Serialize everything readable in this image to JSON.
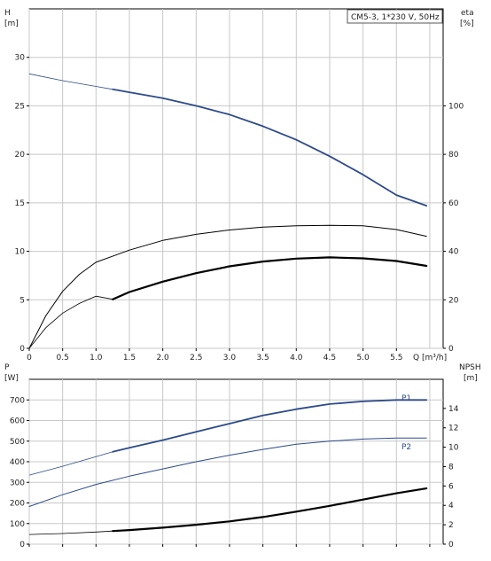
{
  "chart_data": [
    {
      "type": "line",
      "legend": "CM5-3, 1*230 V, 50Hz",
      "xlabel": "Q [m³/h]",
      "ylabel_left": [
        "H",
        "[m]"
      ],
      "ylabel_right": [
        "eta",
        "[%]"
      ],
      "xlim": [
        0,
        6.2
      ],
      "ylim_left": [
        0,
        35
      ],
      "ylim_right": [
        0,
        140
      ],
      "xticks": [
        "0",
        "0.5",
        "1.0",
        "1.5",
        "2.0",
        "2.5",
        "3.0",
        "3.5",
        "4.0",
        "4.5",
        "5.0",
        "5.5"
      ],
      "yticks_left": [
        "0",
        "5",
        "10",
        "15",
        "20",
        "25",
        "30"
      ],
      "yticks_right": [
        "0",
        "20",
        "40",
        "60",
        "80",
        "100"
      ],
      "grid": true,
      "series": [
        {
          "axis": "left",
          "color": "#2c4a8a",
          "width": 1.8,
          "thin_until": 1.25,
          "points": [
            [
              0,
              28.3
            ],
            [
              0.5,
              27.6
            ],
            [
              1.0,
              27.0
            ],
            [
              1.25,
              26.7
            ],
            [
              1.5,
              26.4
            ],
            [
              2.0,
              25.8
            ],
            [
              2.5,
              25.0
            ],
            [
              3.0,
              24.1
            ],
            [
              3.5,
              22.9
            ],
            [
              4.0,
              21.5
            ],
            [
              4.5,
              19.8
            ],
            [
              5.0,
              17.9
            ],
            [
              5.5,
              15.8
            ],
            [
              5.95,
              14.7
            ]
          ]
        },
        {
          "axis": "right",
          "color": "#000000",
          "width": 1,
          "points": [
            [
              0,
              0
            ],
            [
              0.25,
              13.5
            ],
            [
              0.5,
              23.5
            ],
            [
              0.75,
              30.5
            ],
            [
              1.0,
              35.5
            ],
            [
              1.5,
              40.5
            ],
            [
              2.0,
              44.5
            ],
            [
              2.5,
              47.0
            ],
            [
              3.0,
              48.8
            ],
            [
              3.5,
              50.0
            ],
            [
              4.0,
              50.5
            ],
            [
              4.5,
              50.7
            ],
            [
              5.0,
              50.5
            ],
            [
              5.5,
              49.0
            ],
            [
              5.95,
              46.2
            ]
          ]
        },
        {
          "axis": "right",
          "color": "#000000",
          "width": 2.2,
          "thin_until": 1.25,
          "points": [
            [
              0,
              0
            ],
            [
              0.25,
              8.5
            ],
            [
              0.5,
              14.5
            ],
            [
              0.75,
              18.5
            ],
            [
              1.0,
              21.5
            ],
            [
              1.25,
              20.2
            ],
            [
              1.5,
              23.2
            ],
            [
              2.0,
              27.5
            ],
            [
              2.5,
              31.0
            ],
            [
              3.0,
              33.8
            ],
            [
              3.5,
              35.8
            ],
            [
              4.0,
              37.0
            ],
            [
              4.5,
              37.5
            ],
            [
              5.0,
              37.1
            ],
            [
              5.5,
              36.0
            ],
            [
              5.95,
              34.0
            ]
          ]
        }
      ]
    },
    {
      "type": "line",
      "xlim": [
        0,
        6.2
      ],
      "ylabel_left": [
        "P",
        "[W]"
      ],
      "ylabel_right": [
        "NPSH",
        "[m]"
      ],
      "ylim_left": [
        0,
        800
      ],
      "ylim_right": [
        0,
        17
      ],
      "yticks_left": [
        "0",
        "100",
        "200",
        "300",
        "400",
        "500",
        "600",
        "700"
      ],
      "yticks_right": [
        "0",
        "2",
        "4",
        "6",
        "8",
        "10",
        "12",
        "14"
      ],
      "grid": true,
      "series": [
        {
          "name": "P1",
          "axis": "left",
          "color": "#2c4a8a",
          "width": 1.8,
          "thin_until": 1.25,
          "points": [
            [
              0,
              335
            ],
            [
              0.5,
              378
            ],
            [
              1.0,
              425
            ],
            [
              1.25,
              448
            ],
            [
              1.5,
              468
            ],
            [
              2.0,
              505
            ],
            [
              2.5,
              545
            ],
            [
              3.0,
              585
            ],
            [
              3.5,
              625
            ],
            [
              4.0,
              655
            ],
            [
              4.5,
              680
            ],
            [
              5.0,
              693
            ],
            [
              5.5,
              700
            ],
            [
              5.95,
              700
            ]
          ]
        },
        {
          "name": "P2",
          "axis": "left",
          "color": "#2c4a8a",
          "width": 1,
          "thin_until": 0,
          "points": [
            [
              0,
              183
            ],
            [
              0.5,
              240
            ],
            [
              1.0,
              290
            ],
            [
              1.5,
              330
            ],
            [
              2.0,
              365
            ],
            [
              2.5,
              400
            ],
            [
              3.0,
              432
            ],
            [
              3.5,
              460
            ],
            [
              4.0,
              485
            ],
            [
              4.5,
              500
            ],
            [
              5.0,
              510
            ],
            [
              5.5,
              515
            ],
            [
              5.95,
              515
            ]
          ]
        },
        {
          "axis": "right",
          "color": "#000000",
          "width": 2.2,
          "thin_until": 1.25,
          "points": [
            [
              0,
              1.0
            ],
            [
              0.5,
              1.1
            ],
            [
              1.0,
              1.25
            ],
            [
              1.25,
              1.35
            ],
            [
              1.5,
              1.45
            ],
            [
              2.0,
              1.7
            ],
            [
              2.5,
              2.0
            ],
            [
              3.0,
              2.35
            ],
            [
              3.5,
              2.8
            ],
            [
              4.0,
              3.35
            ],
            [
              4.5,
              3.95
            ],
            [
              5.0,
              4.6
            ],
            [
              5.5,
              5.25
            ],
            [
              5.95,
              5.75
            ]
          ]
        }
      ]
    }
  ]
}
